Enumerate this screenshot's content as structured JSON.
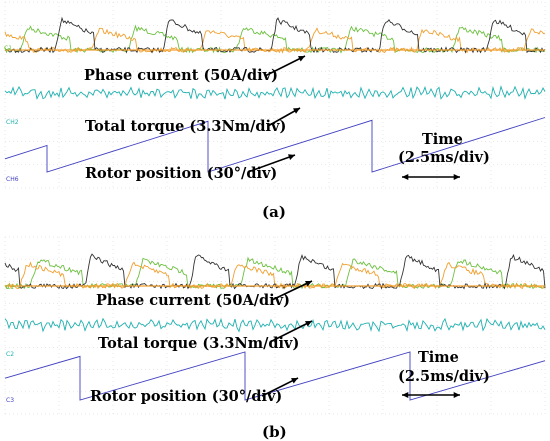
{
  "panels": [
    {
      "caption": "(a)",
      "phase_label": "Phase current (50A/div)",
      "torque_label": "Total torque (3.3Nm/div)",
      "rotor_label": "Rotor position (30°/div)",
      "time_label_1": "Time",
      "time_label_2": "(2.5ms/div)",
      "ch_tags": [
        "CH2",
        "CH6"
      ]
    },
    {
      "caption": "(b)",
      "phase_label": "Phase current (50A/div)",
      "torque_label": "Total torque (3.3Nm/div)",
      "rotor_label": "Rotor position (30°/div)",
      "time_label_1": "Time",
      "time_label_2": "(2.5ms/div)",
      "ch_tags": [
        "C1",
        "C2",
        "C3"
      ]
    }
  ],
  "colors": {
    "phase_a": "#333333",
    "phase_b": "#f0a030",
    "phase_c": "#6cc040",
    "torque": "#20b0b0",
    "rotor": "#4040c0",
    "grid": "#c8c8c8"
  },
  "chart_data": [
    {
      "type": "line",
      "xlabel": "Time",
      "series": [
        {
          "values": [
            0,
            1,
            0,
            0,
            0,
            0,
            1,
            0,
            0,
            0,
            0,
            1,
            0,
            0,
            0,
            0,
            1,
            0,
            0,
            0,
            0,
            1,
            0
          ]
        },
        {
          "values": [
            0,
            0,
            0,
            1,
            0,
            0,
            0,
            0,
            1,
            0,
            0,
            0,
            0,
            1,
            0,
            0,
            0,
            0,
            1,
            0,
            0,
            0,
            1
          ]
        },
        {
          "values": [
            1,
            0,
            1,
            0,
            0,
            1,
            0,
            1,
            0,
            0,
            1,
            0,
            1,
            0,
            0,
            1,
            0,
            1,
            0,
            0,
            1,
            0,
            1
          ]
        },
        {
          "values": [
            0,
            0.2,
            -0.2,
            0.3,
            -0.1,
            0.2,
            -0.3,
            0.1,
            0.2,
            -0.2,
            0.1,
            0.3,
            -0.2,
            0.1,
            -0.1,
            0.2,
            -0.3,
            0.2,
            0.1,
            -0.2,
            0.2,
            -0.1,
            0.1
          ]
        },
        {
          "values": [
            0.6,
            1,
            0,
            0.2,
            0.4,
            0.6,
            0.8,
            1,
            0,
            0.2,
            0.4,
            0.6,
            0.8,
            1,
            0,
            0.2,
            0.4,
            0.6
          ]
        }
      ]
    },
    {
      "type": "line",
      "xlabel": "Time",
      "series": [
        {
          "values": [
            0,
            0,
            0,
            1,
            0,
            0,
            0,
            0,
            1,
            0,
            0,
            0,
            0,
            1,
            0,
            0,
            0,
            0,
            1,
            0,
            0,
            0,
            0
          ]
        },
        {
          "values": [
            0,
            1,
            0,
            0,
            0,
            1,
            0,
            0,
            0,
            1,
            0,
            0,
            0,
            1,
            0,
            0,
            0,
            1,
            0,
            0,
            0,
            1,
            0
          ]
        },
        {
          "values": [
            1,
            0,
            0,
            0,
            1,
            0,
            0,
            0,
            1,
            0,
            0,
            0,
            1,
            0,
            0,
            0,
            1,
            0,
            0,
            0,
            1,
            0,
            1
          ]
        },
        {
          "values": [
            0.1,
            -0.2,
            0.3,
            -0.1,
            0.2,
            -0.2,
            0.1,
            0.3,
            -0.3,
            0.2,
            -0.1,
            0.1,
            0.2,
            -0.2,
            0.3,
            -0.1,
            0.1,
            -0.2,
            0.2,
            0.1,
            -0.3,
            0.2,
            0
          ]
        },
        {
          "values": [
            0.5,
            1,
            0,
            0.2,
            0.4,
            0.6,
            0.8,
            1,
            0,
            0.2,
            0.4,
            0.6,
            0.8,
            1,
            0,
            0.2,
            0.4,
            0.6
          ]
        }
      ]
    }
  ]
}
